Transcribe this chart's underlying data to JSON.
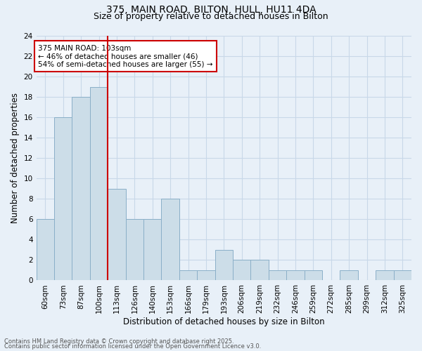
{
  "title1": "375, MAIN ROAD, BILTON, HULL, HU11 4DA",
  "title2": "Size of property relative to detached houses in Bilton",
  "xlabel": "Distribution of detached houses by size in Bilton",
  "ylabel": "Number of detached properties",
  "categories": [
    "60sqm",
    "73sqm",
    "87sqm",
    "100sqm",
    "113sqm",
    "126sqm",
    "140sqm",
    "153sqm",
    "166sqm",
    "179sqm",
    "193sqm",
    "206sqm",
    "219sqm",
    "232sqm",
    "246sqm",
    "259sqm",
    "272sqm",
    "285sqm",
    "299sqm",
    "312sqm",
    "325sqm"
  ],
  "values": [
    6,
    16,
    18,
    19,
    9,
    6,
    6,
    8,
    1,
    1,
    3,
    2,
    2,
    1,
    1,
    1,
    0,
    1,
    0,
    1,
    1
  ],
  "bar_color": "#ccdde8",
  "bar_edge_color": "#8aafc8",
  "vline_color": "#cc0000",
  "vline_pos": 3.5,
  "ylim": [
    0,
    24
  ],
  "yticks": [
    0,
    2,
    4,
    6,
    8,
    10,
    12,
    14,
    16,
    18,
    20,
    22,
    24
  ],
  "annotation_title": "375 MAIN ROAD: 103sqm",
  "annotation_line1": "← 46% of detached houses are smaller (46)",
  "annotation_line2": "54% of semi-detached houses are larger (55) →",
  "annotation_box_facecolor": "#ffffff",
  "annotation_box_edgecolor": "#cc0000",
  "grid_color": "#c8d8e8",
  "background_color": "#e8f0f8",
  "footer1": "Contains HM Land Registry data © Crown copyright and database right 2025.",
  "footer2": "Contains public sector information licensed under the Open Government Licence v3.0.",
  "title_fontsize": 10,
  "subtitle_fontsize": 9,
  "tick_fontsize": 7.5,
  "ylabel_fontsize": 8.5,
  "xlabel_fontsize": 8.5,
  "footer_fontsize": 6,
  "annotation_fontsize": 7.5
}
